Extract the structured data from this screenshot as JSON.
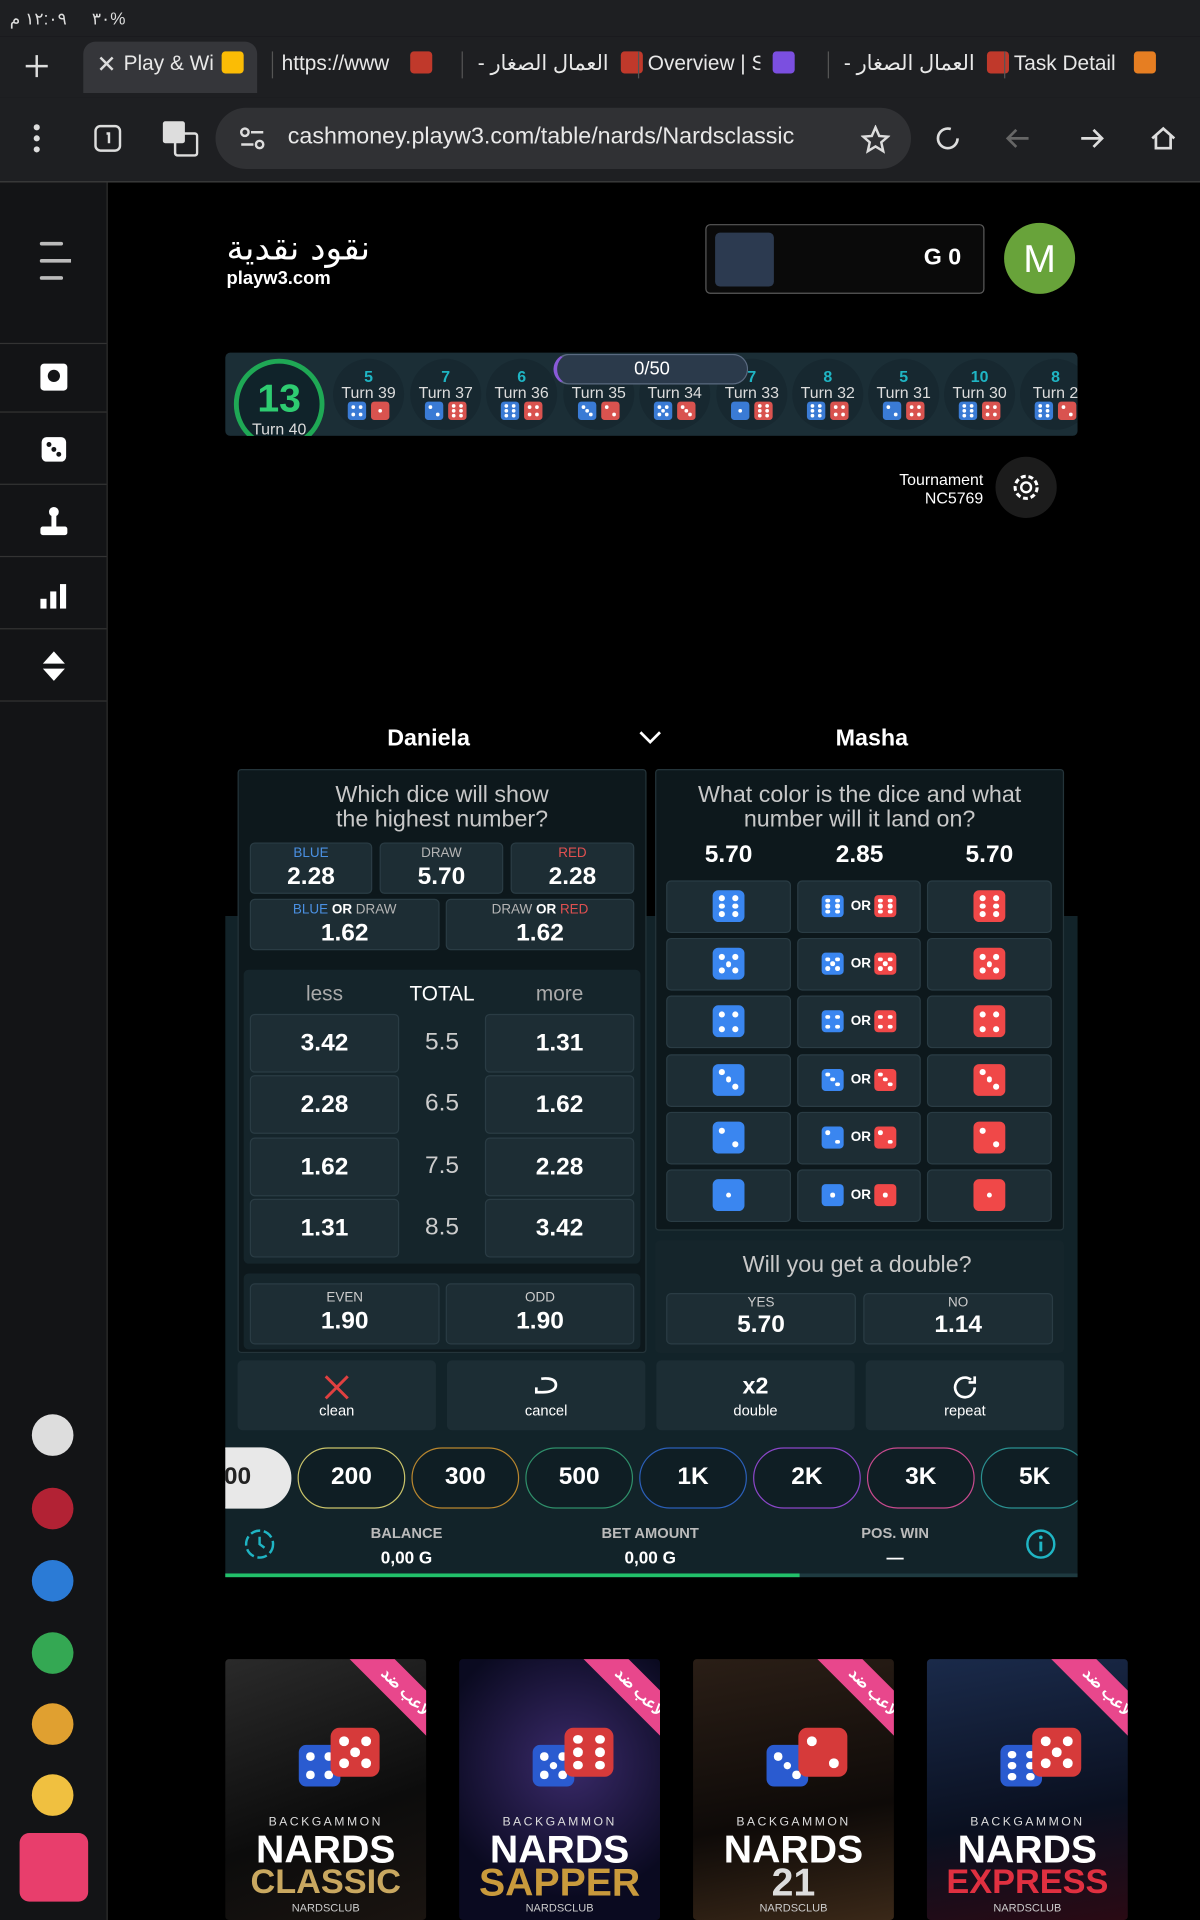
{
  "status_bar": {
    "time": "١٢:٠٩ م",
    "battery": "%٣٠"
  },
  "tabs": [
    "Play & Wi",
    "https://www",
    "العمال الصغار -",
    "Overview | S",
    "العمال الصغار -",
    "Task Detail |"
  ],
  "address_bar": {
    "url": "cashmoney.playw3.com/table/nards/Nardsclassic"
  },
  "header": {
    "logo_arabic": "نقود نقدية",
    "logo_domain": "playw3.com",
    "balance": "G 0",
    "avatar": "M"
  },
  "turn_history": {
    "current_total": "13",
    "current_turn": "Turn 40",
    "progress": "0/50",
    "turns": [
      {
        "total": "5",
        "label": "Turn 39"
      },
      {
        "total": "7",
        "label": "Turn 37"
      },
      {
        "total": "6",
        "label": "Turn 36"
      },
      {
        "label": "Turn 35"
      },
      {
        "label": "Turn 34"
      },
      {
        "total": "7",
        "label": "Turn 33"
      },
      {
        "total": "8",
        "label": "Turn 32"
      },
      {
        "total": "5",
        "label": "Turn 31"
      },
      {
        "total": "10",
        "label": "Turn 30"
      },
      {
        "total": "8",
        "label": "Turn 2"
      }
    ]
  },
  "tournament": {
    "label": "Tournament",
    "code": "NC5769"
  },
  "players": [
    "Daniela",
    "Masha"
  ],
  "highest_number": {
    "question": [
      "Which dice will show",
      "the highest number?"
    ],
    "options": [
      {
        "label": "BLUE",
        "color": "#4a90e2",
        "odds": "2.28"
      },
      {
        "label": "DRAW",
        "color": "#b5b5b5",
        "odds": "5.70"
      },
      {
        "label": "RED",
        "color": "#e05050",
        "odds": "2.28"
      }
    ],
    "combos": [
      {
        "parts": [
          {
            "text": "BLUE",
            "color": "#4a90e2"
          },
          {
            "text": "OR",
            "color": "#ffffff"
          },
          {
            "text": "DRAW",
            "color": "#b5b5b5"
          }
        ],
        "odds": "1.62"
      },
      {
        "parts": [
          {
            "text": "DRAW",
            "color": "#b5b5b5"
          },
          {
            "text": "OR",
            "color": "#ffffff"
          },
          {
            "text": "RED",
            "color": "#e05050"
          }
        ],
        "odds": "1.62"
      }
    ]
  },
  "total": {
    "headers": [
      "less",
      "TOTAL",
      "more"
    ],
    "rows": [
      {
        "less": "3.42",
        "line": "5.5",
        "more": "1.31"
      },
      {
        "less": "2.28",
        "line": "6.5",
        "more": "1.62"
      },
      {
        "less": "1.62",
        "line": "7.5",
        "more": "2.28"
      },
      {
        "less": "1.31",
        "line": "8.5",
        "more": "3.42"
      }
    ]
  },
  "parity": [
    {
      "label": "EVEN",
      "odds": "1.90"
    },
    {
      "label": "ODD",
      "odds": "1.90"
    }
  ],
  "color_number": {
    "question": [
      "What color is the dice and what",
      "number will it land on?"
    ],
    "column_odds": [
      "5.70",
      "2.85",
      "5.70"
    ],
    "or_label": "OR"
  },
  "double": {
    "question": "Will you get a double?",
    "options": [
      {
        "label": "YES",
        "odds": "5.70"
      },
      {
        "label": "NO",
        "odds": "1.14"
      }
    ]
  },
  "actions": [
    {
      "label": "clean"
    },
    {
      "label": "cancel"
    },
    {
      "title": "x2",
      "label": "double"
    },
    {
      "label": "repeat"
    }
  ],
  "chips": [
    {
      "label": "00",
      "color": "#e8e8e8"
    },
    {
      "label": "200",
      "color": "#c9c36a"
    },
    {
      "label": "300",
      "color": "#b8862e"
    },
    {
      "label": "500",
      "color": "#2f8f6a"
    },
    {
      "label": "1K",
      "color": "#2b5fb8"
    },
    {
      "label": "2K",
      "color": "#8a46c8"
    },
    {
      "label": "3K",
      "color": "#c84a8e"
    },
    {
      "label": "5K",
      "color": "#2a9090"
    }
  ],
  "footer": [
    {
      "label": "BALANCE",
      "value": "0,00 G"
    },
    {
      "label": "BET AMOUNT",
      "value": "0,00 G"
    },
    {
      "label": "POS. WIN",
      "value": "—"
    }
  ],
  "cards": [
    {
      "badge": "لاعب ضد",
      "brand": "BACKGAMMON",
      "title": "NARDS",
      "subtitle": "CLASSIC",
      "subtitle_color": "#c9a860",
      "footer": "NARDSCLUB"
    },
    {
      "badge": "لاعب ضد",
      "brand": "BACKGAMMON",
      "title": "NARDS",
      "subtitle": "SAPPER",
      "subtitle_color": "#c99a3c",
      "footer": "NARDSCLUB"
    },
    {
      "badge": "لاعب ضد",
      "brand": "BACKGAMMON",
      "title": "NARDS",
      "subtitle": "21",
      "subtitle_color": "#dddddd",
      "footer": "NARDSCLUB"
    },
    {
      "badge": "لاعب ضد",
      "brand": "BACKGAMMON",
      "title": "NARDS",
      "subtitle": "EXPRESS",
      "subtitle_color": "#e03040",
      "footer": "NARDSCLUB"
    }
  ]
}
